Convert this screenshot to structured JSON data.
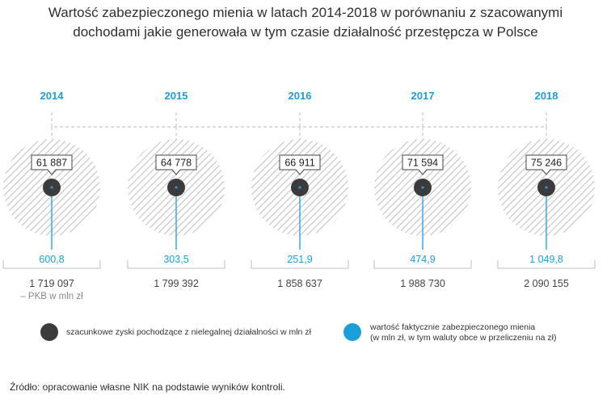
{
  "title": {
    "line1": "Wartość zabezpieczonego mienia w latach 2014-2018 w porównaniu z szacowanymi",
    "line2": "dochodami jakie generowała w tym czasie działalność przestępcza w Polsce"
  },
  "colors": {
    "accent": "#1a9fdb",
    "dark_dot": "#3b3b3b",
    "hatch": "#bdbdbd",
    "bracket": "#c8c8c8",
    "text": "#333333"
  },
  "chart_data": {
    "type": "bubble-infographic",
    "years": [
      "2014",
      "2015",
      "2016",
      "2017",
      "2018"
    ],
    "series": [
      {
        "name": "szacunkowe zyski pochodzące z nielegalnej działalności w mln zł",
        "labels": [
          "61 887",
          "64 778",
          "66 911",
          "71 594",
          "75 246"
        ],
        "values": [
          61887,
          64778,
          66911,
          71594,
          75246
        ]
      },
      {
        "name": "wartość faktycznie zabezpieczonego mienia",
        "labels": [
          "600,8",
          "303,5",
          "251,9",
          "474,9",
          "1 049,8"
        ],
        "values": [
          600.8,
          303.5,
          251.9,
          474.9,
          1049.8
        ]
      }
    ],
    "pkb": {
      "labels": [
        "1 719 097",
        "1 799 392",
        "1 858 637",
        "1 988 730",
        "2 090 155"
      ],
      "values": [
        1719097,
        1799392,
        1858637,
        1988730,
        2090155
      ],
      "note": "– PKB w mln zł"
    }
  },
  "legend": {
    "dark_label": "szacunkowe zyski pochodzące z nielegalnej działalności w mln zł",
    "blue_label_line1": "wartość faktycznie zabezpieczonego mienia",
    "blue_label_line2": "(w mln zł, w tym waluty obce w przeliczeniu na zł)"
  },
  "source": "Źródło: opracowanie własne NIK na podstawie wyników kontroli."
}
